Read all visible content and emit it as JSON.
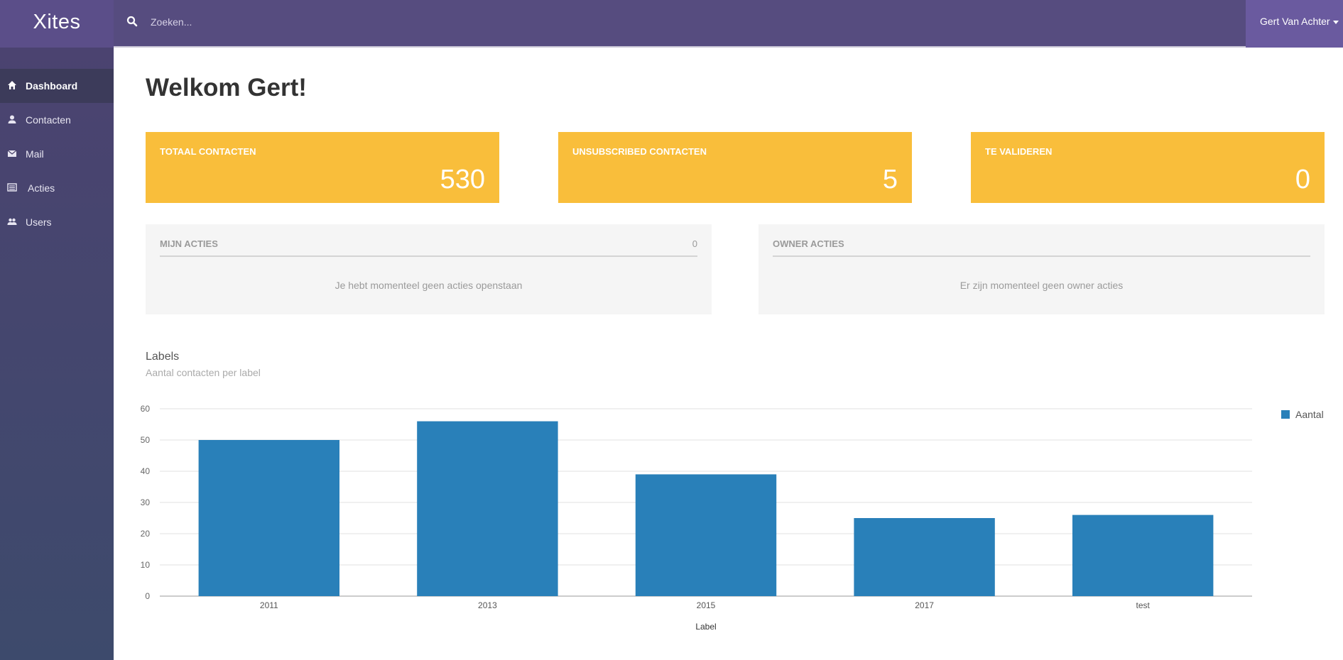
{
  "app": {
    "brand": "Xites"
  },
  "search": {
    "placeholder": "Zoeken..."
  },
  "user": {
    "name": "Gert Van Achter"
  },
  "sidebar": {
    "items": [
      {
        "label": "Dashboard",
        "icon": "home-icon",
        "active": true
      },
      {
        "label": "Contacten",
        "icon": "user-icon",
        "active": false
      },
      {
        "label": "Mail",
        "icon": "envelope-icon",
        "active": false
      },
      {
        "label": "Acties",
        "icon": "list-icon",
        "active": false
      },
      {
        "label": "Users",
        "icon": "users-icon",
        "active": false
      }
    ]
  },
  "main": {
    "welcome": "Welkom Gert!",
    "stats": [
      {
        "title": "TOTAAL CONTACTEN",
        "value": "530"
      },
      {
        "title": "UNSUBSCRIBED CONTACTEN",
        "value": "5"
      },
      {
        "title": "TE VALIDEREN",
        "value": "0"
      }
    ],
    "panels": {
      "mijn_acties": {
        "title": "MIJN ACTIES",
        "count": "0",
        "empty": "Je hebt momenteel geen acties openstaan"
      },
      "owner_acties": {
        "title": "OWNER ACTIES",
        "empty": "Er zijn momenteel geen owner acties"
      }
    }
  },
  "colors": {
    "topbar": "#564c7f",
    "sidebar": "#463f68",
    "stat_card": "#f9be3b",
    "bar": "#2980b9"
  },
  "chart_data": {
    "type": "bar",
    "title": "Labels",
    "subtitle": "Aantal contacten per label",
    "categories": [
      "2011",
      "2013",
      "2015",
      "2017",
      "test"
    ],
    "series": [
      {
        "name": "Aantal",
        "values": [
          50,
          56,
          39,
          25,
          26
        ],
        "color": "#2980b9"
      }
    ],
    "xlabel": "Label",
    "ylabel": "",
    "ylim": [
      0,
      60
    ],
    "yticks": [
      0,
      10,
      20,
      30,
      40,
      50,
      60
    ],
    "grid": true,
    "legend": "right"
  }
}
